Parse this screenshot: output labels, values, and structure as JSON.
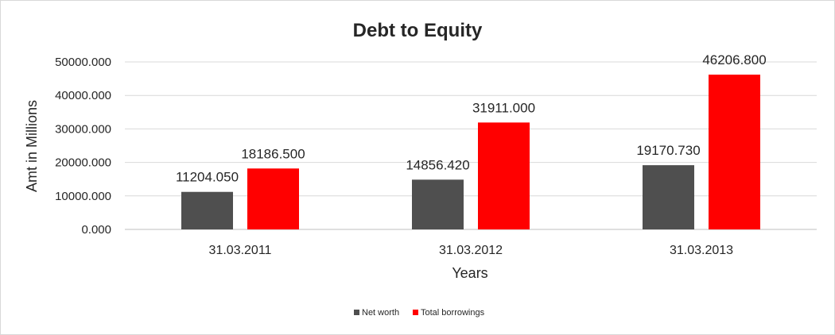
{
  "chart_data": {
    "type": "bar",
    "title": "Debt to Equity",
    "xlabel": "Years",
    "ylabel": "Amt in Millions",
    "categories": [
      "31.03.2011",
      "31.03.2012",
      "31.03.2013"
    ],
    "series": [
      {
        "name": "Net worth",
        "color": "#4f4f4f",
        "values": [
          11204.05,
          14856.42,
          19170.73
        ],
        "labels": [
          "11204.050",
          "14856.420",
          "19170.730"
        ]
      },
      {
        "name": "Total borrowings",
        "color": "#ff0000",
        "values": [
          18186.5,
          31911.0,
          46206.8
        ],
        "labels": [
          "18186.500",
          "31911.000",
          "46206.800"
        ]
      }
    ],
    "ylim": [
      0,
      50000
    ],
    "yticks": [
      "0.000",
      "10000.000",
      "20000.000",
      "30000.000",
      "40000.000",
      "50000.000"
    ],
    "grid": true,
    "legend": "bottom"
  }
}
